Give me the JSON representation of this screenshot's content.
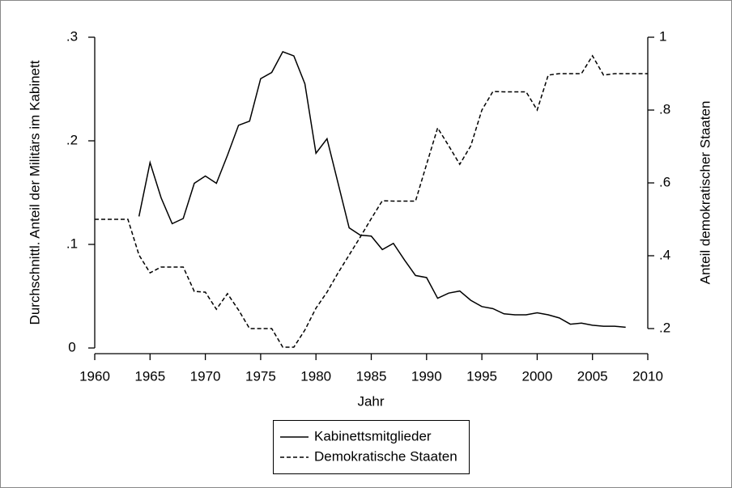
{
  "chart_data": {
    "type": "line",
    "xlabel": "Jahr",
    "ylabel": "Durchschnittl. Anteil der Militärs im Kabinett",
    "y2label": "Anteil demokratischer Staaten",
    "x": [
      1960,
      1961,
      1962,
      1963,
      1964,
      1965,
      1966,
      1967,
      1968,
      1969,
      1970,
      1971,
      1972,
      1973,
      1974,
      1975,
      1976,
      1977,
      1978,
      1979,
      1980,
      1981,
      1982,
      1983,
      1984,
      1985,
      1986,
      1987,
      1988,
      1989,
      1990,
      1991,
      1992,
      1993,
      1994,
      1995,
      1996,
      1997,
      1998,
      1999,
      2000,
      2001,
      2002,
      2003,
      2004,
      2005,
      2006,
      2007,
      2008,
      2009,
      2010
    ],
    "series": [
      {
        "name": "Kabinettsmitglieder",
        "color": "#000000",
        "linestyle": "solid",
        "axis": "y",
        "values": [
          null,
          null,
          null,
          null,
          0.127,
          0.179,
          0.145,
          0.12,
          0.125,
          0.159,
          0.166,
          0.159,
          0.186,
          0.215,
          0.219,
          0.26,
          0.266,
          0.286,
          0.282,
          0.255,
          0.188,
          0.202,
          0.159,
          0.116,
          0.109,
          0.108,
          0.095,
          0.101,
          0.085,
          0.07,
          0.068,
          0.048,
          0.053,
          0.055,
          0.046,
          0.04,
          0.038,
          0.033,
          0.032,
          0.032,
          0.034,
          0.032,
          0.029,
          0.023,
          0.024,
          0.022,
          0.021,
          0.021,
          0.02,
          null,
          null
        ]
      },
      {
        "name": "Demokratische Staaten",
        "color": "#000000",
        "linestyle": "dashed",
        "axis": "y2",
        "values": [
          0.5,
          0.5,
          0.5,
          0.5,
          0.402,
          0.353,
          0.369,
          0.369,
          0.369,
          0.302,
          0.3,
          0.253,
          0.296,
          0.251,
          0.2,
          0.2,
          0.2,
          0.149,
          0.149,
          0.196,
          0.256,
          0.3,
          0.353,
          0.402,
          0.451,
          0.502,
          0.551,
          0.55,
          0.55,
          0.55,
          0.651,
          0.751,
          0.702,
          0.651,
          0.702,
          0.8,
          0.851,
          0.85,
          0.85,
          0.85,
          0.8,
          0.896,
          0.9,
          0.9,
          0.9,
          0.949,
          0.896,
          0.9,
          0.9,
          0.9,
          0.9
        ]
      }
    ],
    "xlim": [
      1960,
      2010
    ],
    "xticks": [
      1960,
      1965,
      1970,
      1975,
      1980,
      1985,
      1990,
      1995,
      2000,
      2005,
      2010
    ],
    "ylim": [
      0,
      0.3
    ],
    "yticks": [
      0,
      {
        "value": 0.1,
        "label": ".1"
      },
      {
        "value": 0.2,
        "label": ".2"
      },
      {
        "value": 0.3,
        "label": ".3"
      }
    ],
    "y2lim": [
      0.2,
      1
    ],
    "y2ticks": [
      {
        "value": 0.2,
        "label": ".2"
      },
      {
        "value": 0.4,
        "label": ".4"
      },
      {
        "value": 0.6,
        "label": ".6"
      },
      {
        "value": 0.8,
        "label": ".8"
      },
      1
    ],
    "legend": "bottom",
    "grid": false
  }
}
